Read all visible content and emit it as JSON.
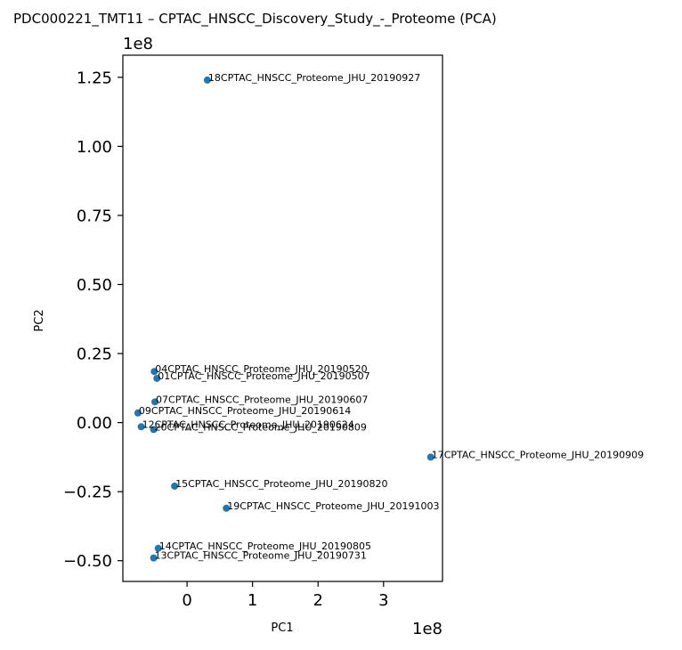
{
  "chart_data": {
    "type": "scatter",
    "title": "PDC000221_TMT11 – CPTAC_HNSCC_Discovery_Study_-_Proteome (PCA)",
    "xlabel": "PC1",
    "ylabel": "PC2",
    "x_offset_label": "1e8",
    "y_offset_label": "1e8",
    "xlim": [
      -0.98,
      3.9
    ],
    "ylim": [
      -0.575,
      1.33
    ],
    "x_ticks": [
      0,
      1,
      2,
      3
    ],
    "x_tick_labels": [
      "0",
      "1",
      "2",
      "3"
    ],
    "y_ticks": [
      -0.5,
      -0.25,
      0.0,
      0.25,
      0.5,
      0.75,
      1.0,
      1.25
    ],
    "y_tick_labels": [
      "−0.50",
      "−0.25",
      "0.00",
      "0.25",
      "0.50",
      "0.75",
      "1.00",
      "1.25"
    ],
    "point_color": "#1f77b4",
    "grid": false,
    "points": [
      {
        "label": "18CPTAC_HNSCC_Proteome_JHU_20190927",
        "x": 0.31,
        "y": 1.24
      },
      {
        "label": "04CPTAC_HNSCC_Proteome_JHU_20190520",
        "x": -0.5,
        "y": 0.185
      },
      {
        "label": "01CPTAC_HNSCC_Proteome_JHU_20190507",
        "x": -0.46,
        "y": 0.16
      },
      {
        "label": "07CPTAC_HNSCC_Proteome_JHU_20190607",
        "x": -0.49,
        "y": 0.075
      },
      {
        "label": "09CPTAC_HNSCC_Proteome_JHU_20190614",
        "x": -0.75,
        "y": 0.035
      },
      {
        "label": "12CPTAC_HNSCC_Proteome_JHU_20190624",
        "x": -0.7,
        "y": -0.015
      },
      {
        "label": "20CPTAC_HNSCC_Proteome_JHU_20190809",
        "x": -0.51,
        "y": -0.025
      },
      {
        "label": "17CPTAC_HNSCC_Proteome_JHU_20190909",
        "x": 3.72,
        "y": -0.125
      },
      {
        "label": "15CPTAC_HNSCC_Proteome_JHU_20190820",
        "x": -0.19,
        "y": -0.23
      },
      {
        "label": "19CPTAC_HNSCC_Proteome_JHU_20191003",
        "x": 0.6,
        "y": -0.31
      },
      {
        "label": "14CPTAC_HNSCC_Proteome_JHU_20190805",
        "x": -0.44,
        "y": -0.455
      },
      {
        "label": "13CPTAC_HNSCC_Proteome_JHU_20190731",
        "x": -0.51,
        "y": -0.49
      }
    ]
  }
}
